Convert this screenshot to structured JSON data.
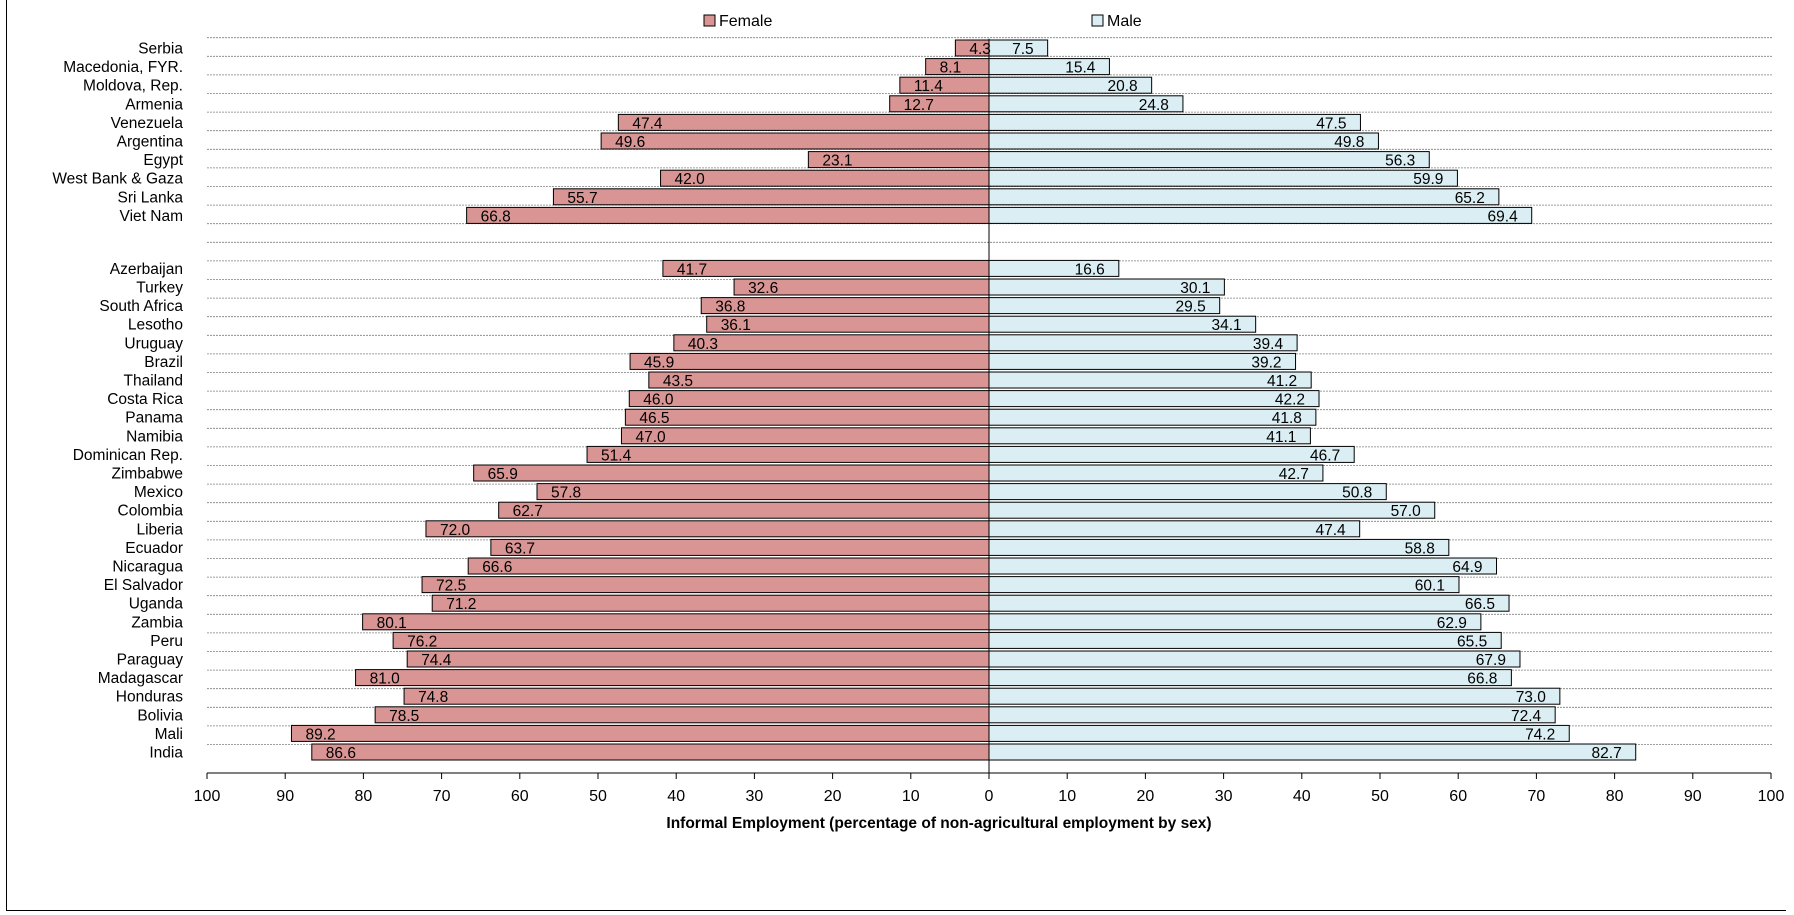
{
  "chart_data": {
    "type": "bar",
    "orientation": "horizontal-diverging",
    "xlabel": "Informal Employment (percentage of non-agricultural employment by sex)",
    "xlim": [
      -100,
      100
    ],
    "xticks": [
      100,
      90,
      80,
      70,
      60,
      50,
      40,
      30,
      20,
      10,
      0,
      10,
      20,
      30,
      40,
      50,
      60,
      70,
      80,
      90,
      100
    ],
    "grid": "horizontal dashed",
    "legend_position": "top-center",
    "series": [
      {
        "name": "Female",
        "side": "left",
        "color": "#d99594"
      },
      {
        "name": "Male",
        "side": "right",
        "color": "#daeef3"
      }
    ],
    "groups": [
      {
        "rows": [
          {
            "country": "Serbia",
            "female": 4.3,
            "male": 7.5
          },
          {
            "country": "Macedonia, FYR.",
            "female": 8.1,
            "male": 15.4
          },
          {
            "country": "Moldova, Rep.",
            "female": 11.4,
            "male": 20.8
          },
          {
            "country": "Armenia",
            "female": 12.7,
            "male": 24.8
          },
          {
            "country": "Venezuela",
            "female": 47.4,
            "male": 47.5
          },
          {
            "country": "Argentina",
            "female": 49.6,
            "male": 49.8
          },
          {
            "country": "Egypt",
            "female": 23.1,
            "male": 56.3
          },
          {
            "country": "West Bank & Gaza",
            "female": 42.0,
            "male": 59.9
          },
          {
            "country": "Sri Lanka",
            "female": 55.7,
            "male": 65.2
          },
          {
            "country": "Viet Nam",
            "female": 66.8,
            "male": 69.4
          }
        ]
      },
      {
        "rows": [
          {
            "country": "Azerbaijan",
            "female": 41.7,
            "male": 16.6
          },
          {
            "country": "Turkey",
            "female": 32.6,
            "male": 30.1
          },
          {
            "country": "South Africa",
            "female": 36.8,
            "male": 29.5
          },
          {
            "country": "Lesotho",
            "female": 36.1,
            "male": 34.1
          },
          {
            "country": "Uruguay",
            "female": 40.3,
            "male": 39.4
          },
          {
            "country": "Brazil",
            "female": 45.9,
            "male": 39.2
          },
          {
            "country": "Thailand",
            "female": 43.5,
            "male": 41.2
          },
          {
            "country": "Costa Rica",
            "female": 46.0,
            "male": 42.2
          },
          {
            "country": "Panama",
            "female": 46.5,
            "male": 41.8
          },
          {
            "country": "Namibia",
            "female": 47.0,
            "male": 41.1
          },
          {
            "country": "Dominican Rep.",
            "female": 51.4,
            "male": 46.7
          },
          {
            "country": "Zimbabwe",
            "female": 65.9,
            "male": 42.7
          },
          {
            "country": "Mexico",
            "female": 57.8,
            "male": 50.8
          },
          {
            "country": "Colombia",
            "female": 62.7,
            "male": 57.0
          },
          {
            "country": "Liberia",
            "female": 72.0,
            "male": 47.4
          },
          {
            "country": "Ecuador",
            "female": 63.7,
            "male": 58.8
          },
          {
            "country": "Nicaragua",
            "female": 66.6,
            "male": 64.9
          },
          {
            "country": "El Salvador",
            "female": 72.5,
            "male": 60.1
          },
          {
            "country": "Uganda",
            "female": 71.2,
            "male": 66.5
          },
          {
            "country": "Zambia",
            "female": 80.1,
            "male": 62.9
          },
          {
            "country": "Peru",
            "female": 76.2,
            "male": 65.5
          },
          {
            "country": "Paraguay",
            "female": 74.4,
            "male": 67.9
          },
          {
            "country": "Madagascar",
            "female": 81.0,
            "male": 66.8
          },
          {
            "country": "Honduras",
            "female": 74.8,
            "male": 73.0
          },
          {
            "country": "Bolivia",
            "female": 78.5,
            "male": 72.4
          },
          {
            "country": "Mali",
            "female": 89.2,
            "male": 74.2
          },
          {
            "country": "India",
            "female": 86.6,
            "male": 82.7
          }
        ]
      }
    ]
  }
}
